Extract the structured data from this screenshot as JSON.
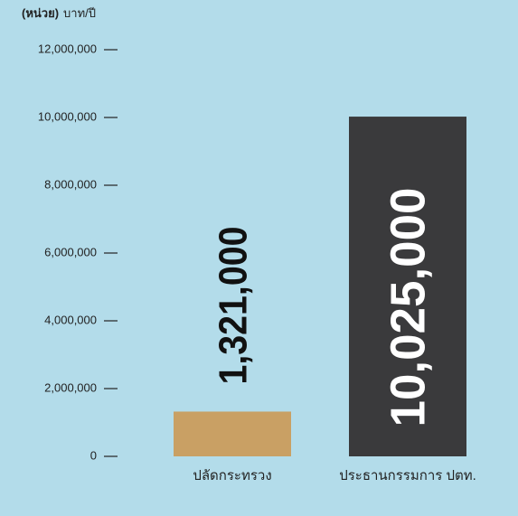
{
  "chart_data": {
    "type": "bar",
    "y_axis_label": {
      "prefix": "(หน่วย)",
      "unit": "บาท/ปี"
    },
    "categories": [
      "ปลัดกระทรวง",
      "ประธานกรรมการ ปตท."
    ],
    "values": [
      1321000,
      10025000
    ],
    "value_labels": [
      "1,321,000",
      "10,025,000"
    ],
    "colors": [
      "#c9a064",
      "#3a3a3c"
    ],
    "label_colors": [
      "#111111",
      "#ffffff"
    ],
    "ylim": [
      0,
      12000000
    ],
    "yticks": [
      0,
      {
        "value": 2000000,
        "label": "2,000,000"
      },
      {
        "value": 4000000,
        "label": "4,000,000"
      },
      {
        "value": 6000000,
        "label": "6,000,000"
      },
      {
        "value": 8000000,
        "label": "8,000,000"
      },
      {
        "value": 10000000,
        "label": "10,000,000"
      },
      {
        "value": 12000000,
        "label": "12,000,000"
      }
    ]
  }
}
